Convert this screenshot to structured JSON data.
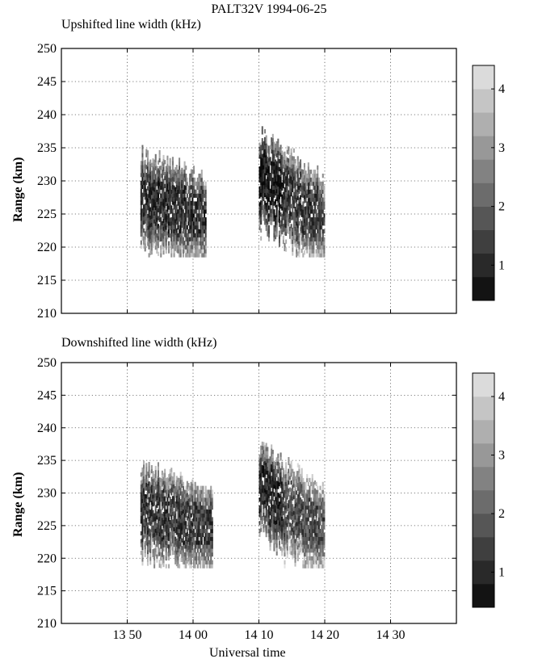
{
  "figure": {
    "title": "PALT32V 1994-06-25",
    "xlabel": "Universal time"
  },
  "chart_data": [
    {
      "type": "heatmap",
      "title": "Upshifted line width (kHz)",
      "ylabel": "Range (km)",
      "xlabel": "",
      "xlim": [
        "13:40",
        "14:40"
      ],
      "xticks": [
        "13 50",
        "14 00",
        "14 10",
        "14 20",
        "14 30"
      ],
      "show_xtick_labels": false,
      "ylim": [
        210,
        250
      ],
      "yticks": [
        210,
        215,
        220,
        225,
        230,
        235,
        240,
        245,
        250
      ],
      "grid": true,
      "colorbar": {
        "range": [
          0.4,
          4.4
        ],
        "ticks": [
          1,
          2,
          3,
          4
        ],
        "levels": 10
      },
      "blobs": [
        {
          "t_start": "13:52",
          "t_end": "14:02",
          "range_min": 218.5,
          "range_max": 233.5,
          "peak_range_max": 236,
          "mean_width": 1.6
        },
        {
          "t_start": "14:10",
          "t_end": "14:20",
          "range_min": 218.5,
          "range_max": 236.5,
          "peak_range_max": 239,
          "mean_width": 1.8
        }
      ]
    },
    {
      "type": "heatmap",
      "title": "Downshifted line width (kHz)",
      "ylabel": "Range (km)",
      "xlabel": "Universal time",
      "xlim": [
        "13:40",
        "14:40"
      ],
      "xticks": [
        "13 50",
        "14 00",
        "14 10",
        "14 20",
        "14 30"
      ],
      "show_xtick_labels": true,
      "ylim": [
        210,
        250
      ],
      "yticks": [
        210,
        215,
        220,
        225,
        230,
        235,
        240,
        245,
        250
      ],
      "grid": true,
      "colorbar": {
        "range": [
          0.4,
          4.4
        ],
        "ticks": [
          1,
          2,
          3,
          4
        ],
        "levels": 10
      },
      "blobs": [
        {
          "t_start": "13:52",
          "t_end": "14:03",
          "range_min": 218.5,
          "range_max": 233.5,
          "peak_range_max": 236,
          "mean_width": 1.8
        },
        {
          "t_start": "14:10",
          "t_end": "14:20",
          "range_min": 218.5,
          "range_max": 236.5,
          "peak_range_max": 239,
          "mean_width": 2.1
        }
      ]
    }
  ]
}
